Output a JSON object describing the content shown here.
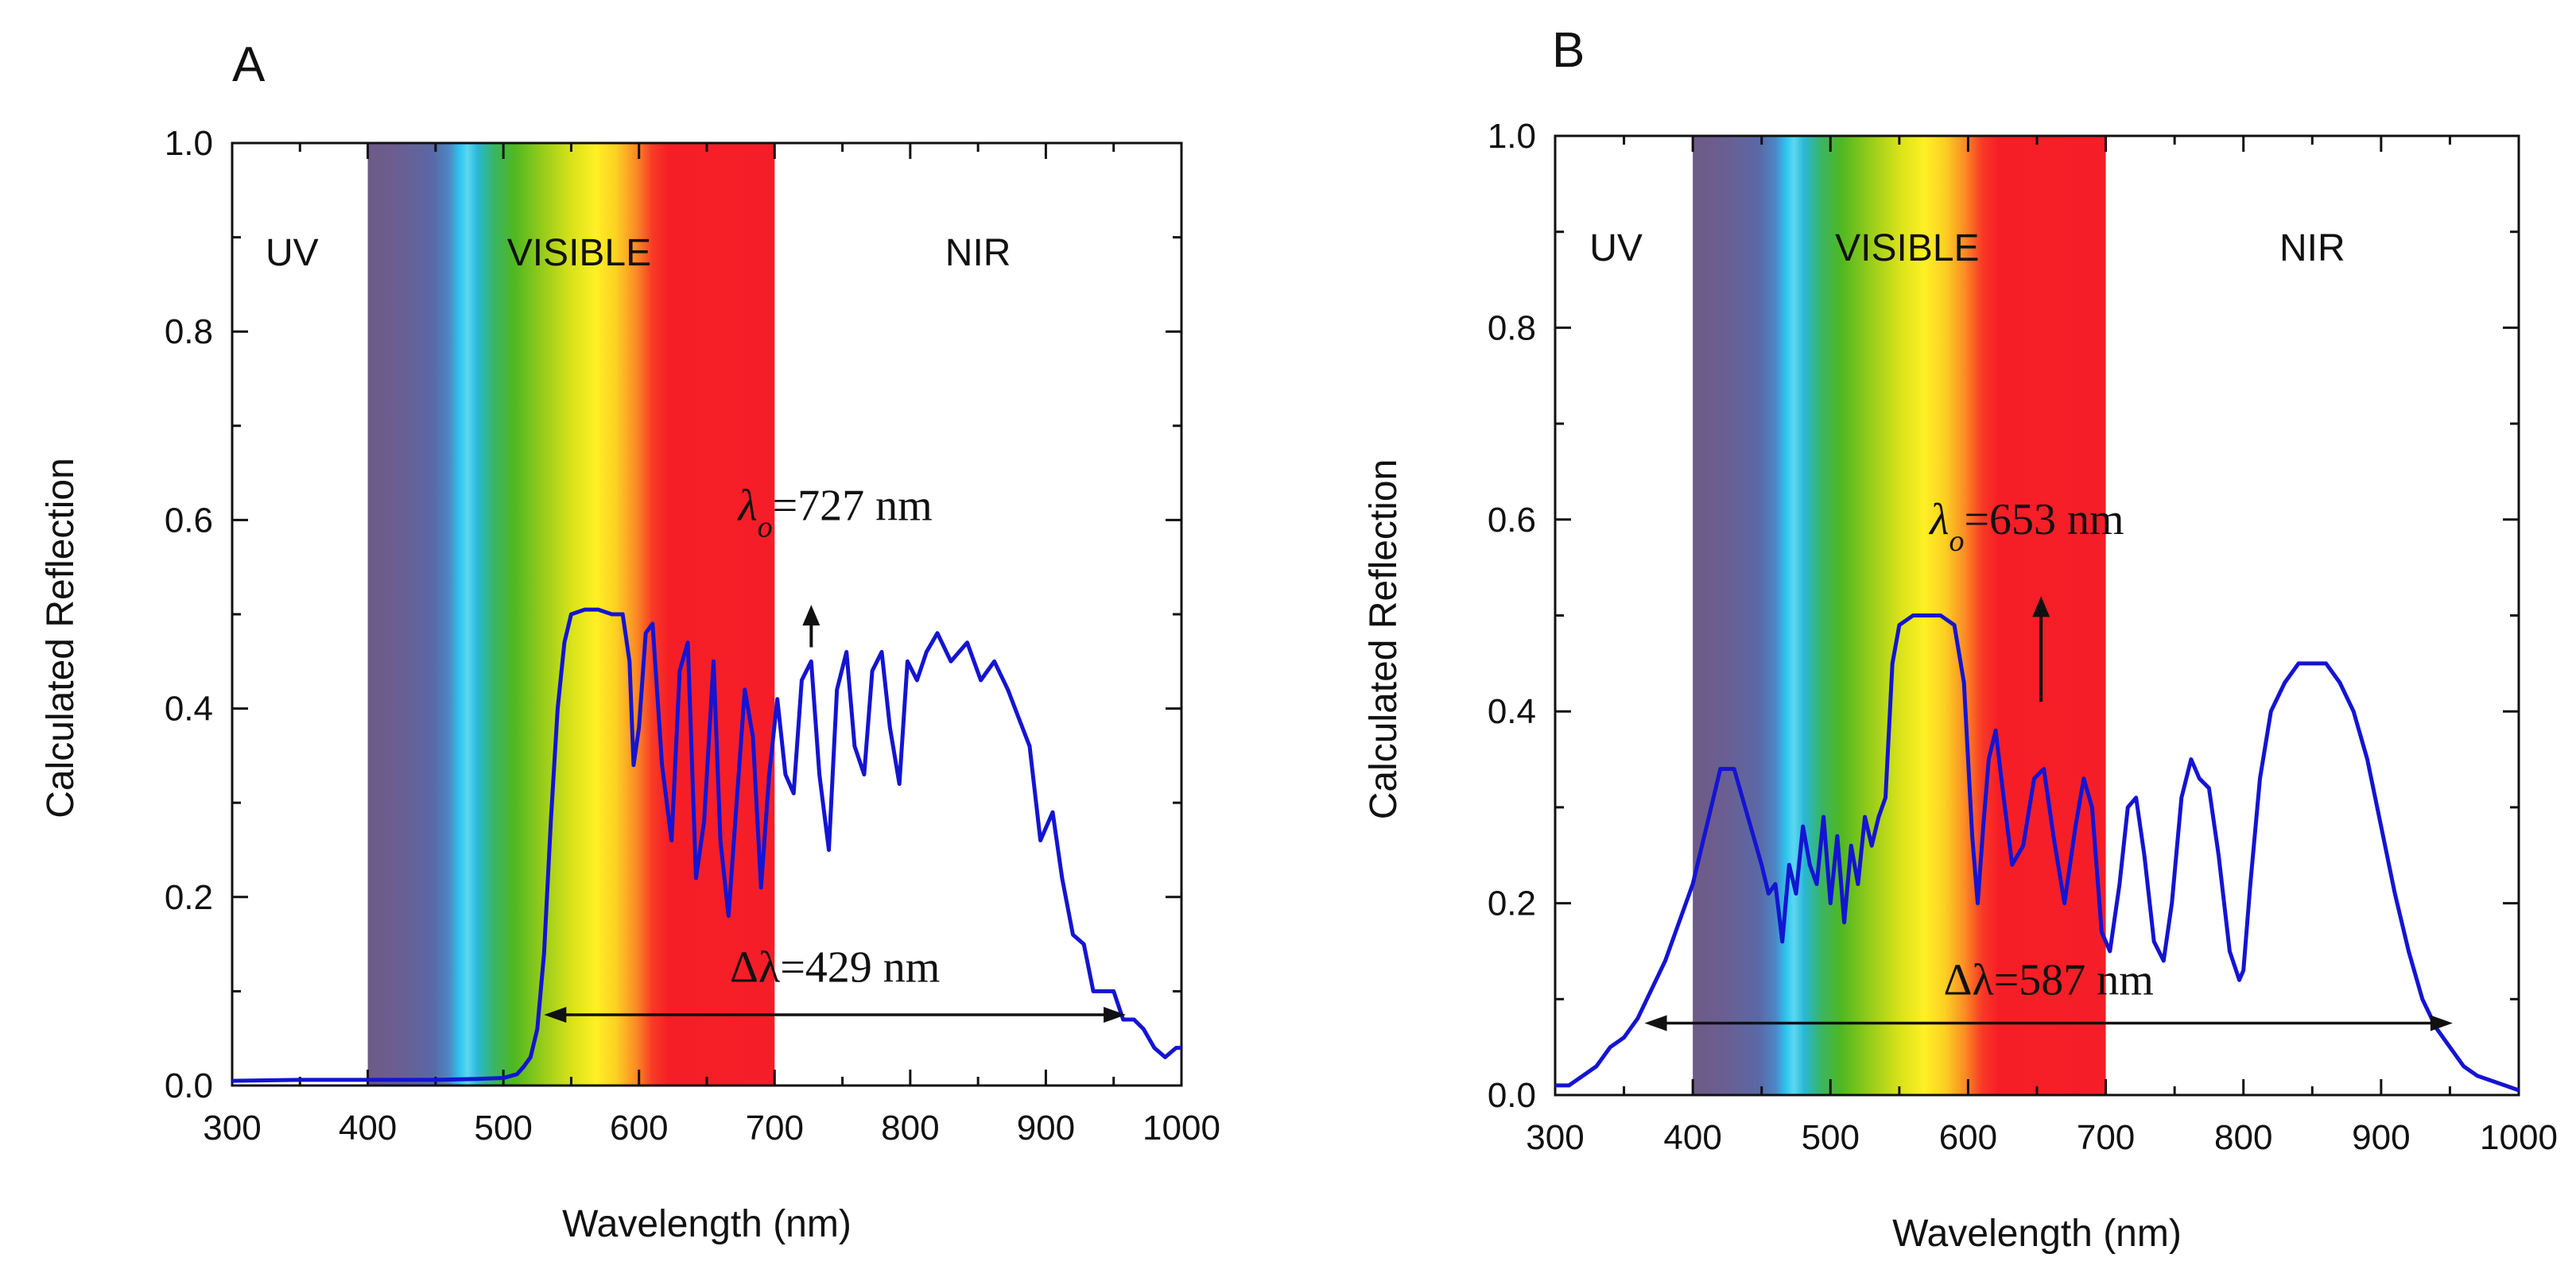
{
  "chart_data": [
    {
      "type": "line",
      "panel_label": "A",
      "xlabel": "Wavelength (nm)",
      "ylabel": "Calculated Reflection",
      "xlim": [
        300,
        1000
      ],
      "ylim": [
        0,
        1.0
      ],
      "xticks": [
        300,
        400,
        500,
        600,
        700,
        800,
        900,
        1000
      ],
      "xtick_labels": [
        "300",
        "400",
        "500",
        "600",
        "700",
        "800",
        "900",
        "1000"
      ],
      "yticks": [
        0,
        0.2,
        0.4,
        0.6,
        0.8,
        1.0
      ],
      "ytick_labels": [
        "0.0",
        "0.2",
        "0.4",
        "0.6",
        "0.8",
        "1.0"
      ],
      "region_labels": {
        "uv": "UV",
        "visible": "VISIBLE",
        "nir": "NIR"
      },
      "regions": {
        "uv": [
          300,
          400
        ],
        "visible": [
          400,
          700
        ],
        "nir": [
          700,
          1000
        ]
      },
      "center_wavelength": {
        "symbol": "λ",
        "subscript": "o",
        "text": "=727 nm",
        "value_nm": 727
      },
      "bandwidth": {
        "symbol": "Δλ",
        "text": "=429 nm",
        "value_nm": 429,
        "from_nm": 530,
        "to_nm": 959
      },
      "series": [
        {
          "name": "reflection",
          "color": "#1414d2",
          "x": [
            300,
            350,
            400,
            450,
            480,
            500,
            510,
            515,
            520,
            525,
            530,
            535,
            540,
            545,
            550,
            560,
            570,
            580,
            588,
            593,
            596,
            600,
            605,
            610,
            617,
            624,
            630,
            636,
            642,
            648,
            655,
            660,
            666,
            672,
            678,
            684,
            690,
            696,
            702,
            708,
            714,
            720,
            727,
            733,
            740,
            746,
            753,
            759,
            766,
            772,
            779,
            785,
            792,
            798,
            805,
            812,
            820,
            830,
            842,
            852,
            862,
            872,
            880,
            888,
            896,
            905,
            912,
            920,
            928,
            935,
            942,
            950,
            957,
            965,
            972,
            980,
            988,
            996,
            1000
          ],
          "y": [
            0.005,
            0.006,
            0.006,
            0.006,
            0.007,
            0.008,
            0.012,
            0.02,
            0.03,
            0.06,
            0.14,
            0.28,
            0.4,
            0.47,
            0.5,
            0.505,
            0.505,
            0.5,
            0.5,
            0.45,
            0.34,
            0.38,
            0.48,
            0.49,
            0.34,
            0.26,
            0.44,
            0.47,
            0.22,
            0.28,
            0.45,
            0.26,
            0.18,
            0.3,
            0.42,
            0.37,
            0.21,
            0.33,
            0.41,
            0.33,
            0.31,
            0.43,
            0.45,
            0.33,
            0.25,
            0.42,
            0.46,
            0.36,
            0.33,
            0.44,
            0.46,
            0.38,
            0.32,
            0.45,
            0.43,
            0.46,
            0.48,
            0.45,
            0.47,
            0.43,
            0.45,
            0.42,
            0.39,
            0.36,
            0.26,
            0.29,
            0.22,
            0.16,
            0.15,
            0.1,
            0.1,
            0.1,
            0.07,
            0.07,
            0.06,
            0.04,
            0.03,
            0.04,
            0.04
          ]
        }
      ]
    },
    {
      "type": "line",
      "panel_label": "B",
      "xlabel": "Wavelength (nm)",
      "ylabel": "Calculated Reflection",
      "xlim": [
        300,
        1000
      ],
      "ylim": [
        0,
        1.0
      ],
      "xticks": [
        300,
        400,
        500,
        600,
        700,
        800,
        900,
        1000
      ],
      "xtick_labels": [
        "300",
        "400",
        "500",
        "600",
        "700",
        "800",
        "900",
        "1000"
      ],
      "yticks": [
        0,
        0.2,
        0.4,
        0.6,
        0.8,
        1.0
      ],
      "ytick_labels": [
        "0.0",
        "0.2",
        "0.4",
        "0.6",
        "0.8",
        "1.0"
      ],
      "region_labels": {
        "uv": "UV",
        "visible": "VISIBLE",
        "nir": "NIR"
      },
      "regions": {
        "uv": [
          300,
          400
        ],
        "visible": [
          400,
          700
        ],
        "nir": [
          700,
          1000
        ]
      },
      "center_wavelength": {
        "symbol": "λ",
        "subscript": "o",
        "text": "=653 nm",
        "value_nm": 653
      },
      "bandwidth": {
        "symbol": "Δλ",
        "text": "=587 nm",
        "value_nm": 587,
        "from_nm": 365,
        "to_nm": 952
      },
      "series": [
        {
          "name": "reflection",
          "color": "#1414d2",
          "x": [
            300,
            310,
            320,
            330,
            340,
            350,
            360,
            370,
            380,
            390,
            400,
            410,
            420,
            430,
            440,
            450,
            455,
            460,
            465,
            470,
            475,
            480,
            485,
            490,
            495,
            500,
            505,
            510,
            515,
            520,
            525,
            530,
            535,
            540,
            545,
            550,
            560,
            570,
            580,
            590,
            597,
            603,
            607,
            611,
            615,
            620,
            625,
            632,
            640,
            648,
            655,
            662,
            670,
            678,
            684,
            690,
            697,
            703,
            710,
            716,
            722,
            728,
            735,
            742,
            748,
            755,
            762,
            768,
            775,
            782,
            790,
            797,
            800,
            805,
            812,
            820,
            830,
            840,
            850,
            860,
            870,
            880,
            890,
            900,
            910,
            920,
            930,
            940,
            950,
            960,
            970,
            980,
            990,
            1000
          ],
          "y": [
            0.01,
            0.01,
            0.02,
            0.03,
            0.05,
            0.06,
            0.08,
            0.11,
            0.14,
            0.18,
            0.22,
            0.28,
            0.34,
            0.34,
            0.29,
            0.24,
            0.21,
            0.22,
            0.16,
            0.24,
            0.21,
            0.28,
            0.24,
            0.22,
            0.29,
            0.2,
            0.27,
            0.18,
            0.26,
            0.22,
            0.29,
            0.26,
            0.29,
            0.31,
            0.45,
            0.49,
            0.5,
            0.5,
            0.5,
            0.49,
            0.43,
            0.27,
            0.2,
            0.28,
            0.35,
            0.38,
            0.32,
            0.24,
            0.26,
            0.33,
            0.34,
            0.27,
            0.2,
            0.28,
            0.33,
            0.3,
            0.17,
            0.15,
            0.22,
            0.3,
            0.31,
            0.25,
            0.16,
            0.14,
            0.2,
            0.31,
            0.35,
            0.33,
            0.32,
            0.25,
            0.15,
            0.12,
            0.13,
            0.22,
            0.33,
            0.4,
            0.43,
            0.45,
            0.45,
            0.45,
            0.43,
            0.4,
            0.35,
            0.28,
            0.21,
            0.15,
            0.1,
            0.07,
            0.05,
            0.03,
            0.02,
            0.015,
            0.01,
            0.005
          ]
        }
      ]
    }
  ]
}
